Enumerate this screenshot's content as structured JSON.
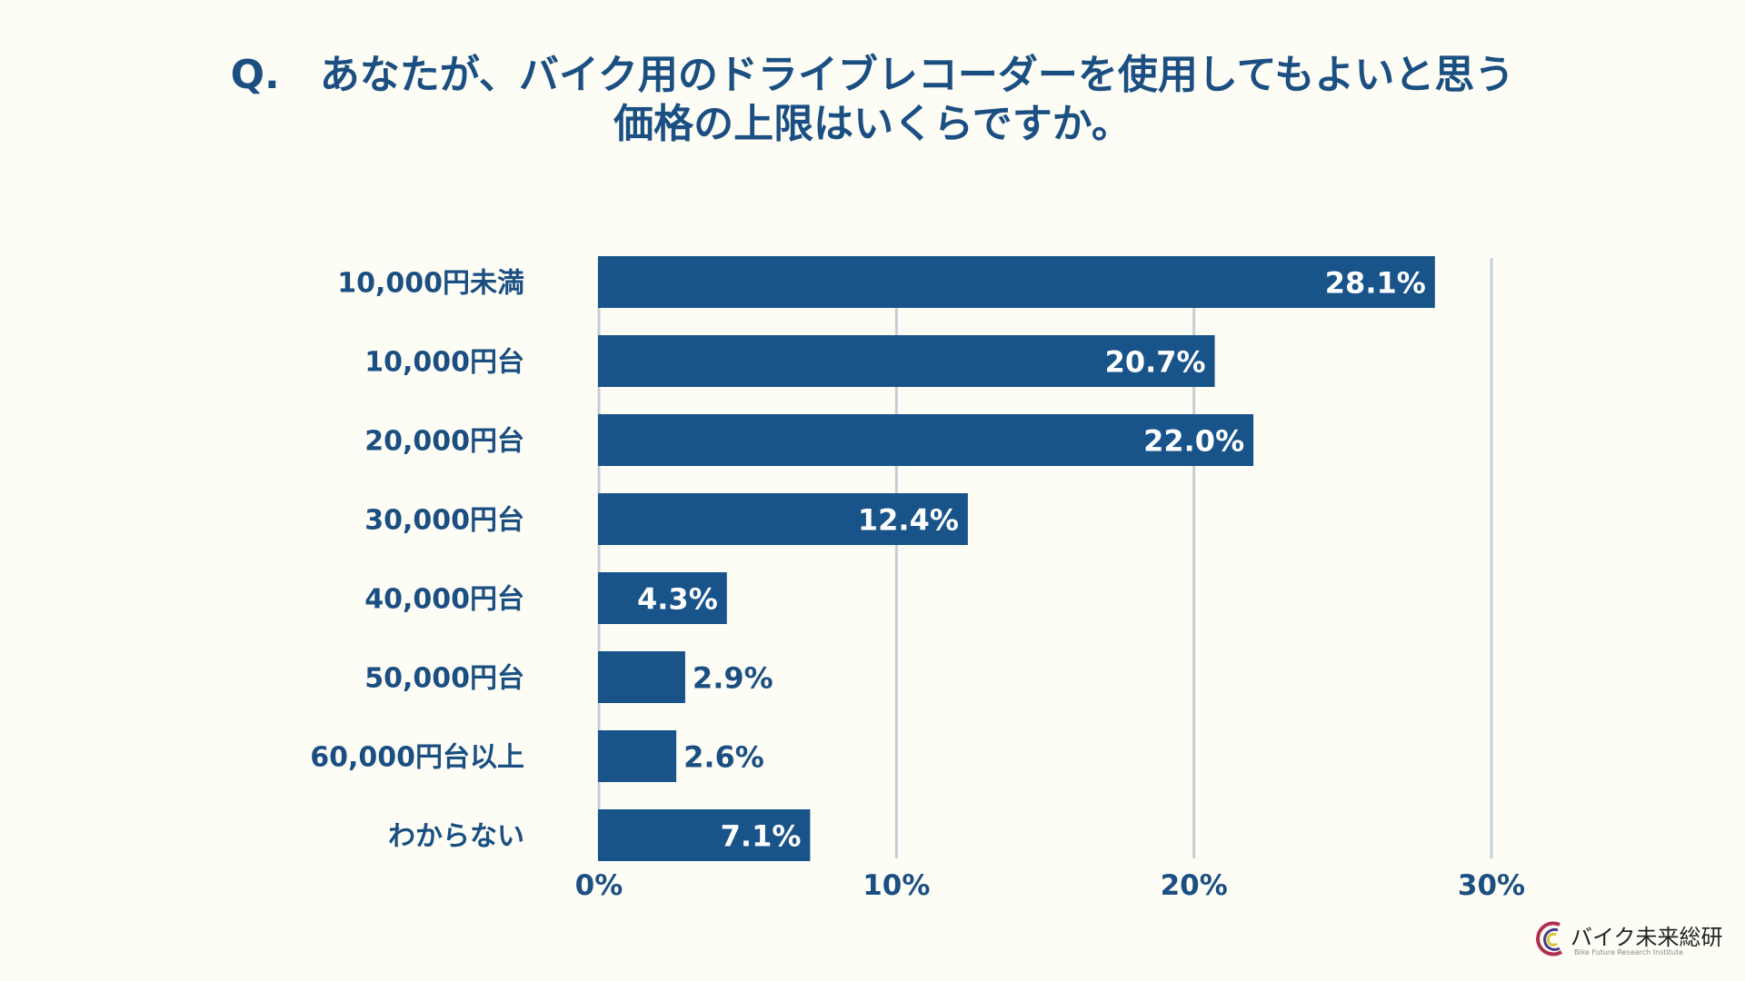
{
  "title": {
    "line1": "Q.　あなたが、バイク用のドライブレコーダーを使用してもよいと思う",
    "line2": "価格の上限はいくらですか。"
  },
  "chart_data": {
    "type": "bar",
    "orientation": "horizontal",
    "categories": [
      "10,000円未満",
      "10,000円台",
      "20,000円台",
      "30,000円台",
      "40,000円台",
      "50,000円台",
      "60,000円台以上",
      "わからない"
    ],
    "values": [
      28.1,
      20.7,
      22.0,
      12.4,
      4.3,
      2.9,
      2.6,
      7.1
    ],
    "value_labels": [
      "28.1%",
      "20.7%",
      "22.0%",
      "12.4%",
      "4.3%",
      "2.9%",
      "2.6%",
      "7.1%"
    ],
    "xlim": [
      0,
      30
    ],
    "xticks": [
      0,
      10,
      20,
      30
    ],
    "xtick_labels": [
      "0%",
      "10%",
      "20%",
      "30%"
    ],
    "grid": true,
    "bar_color": "#18538a",
    "label_color_inside": "#ffffff",
    "label_color_outside": "#1b4f82"
  },
  "logo": {
    "name": "バイク未来総研",
    "subtitle": "Bike Future Research Institute"
  }
}
